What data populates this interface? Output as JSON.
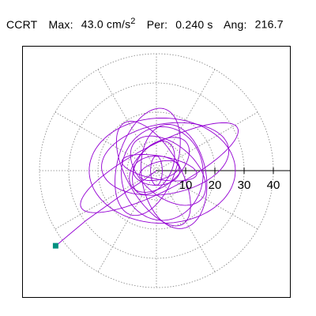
{
  "header": {
    "station": "CCRT",
    "max_label": "Max:",
    "max_value": "43.0",
    "max_unit": "cm/s",
    "max_unit_exp": "2",
    "per_label": "Per:",
    "per_value": "0.240 s",
    "ang_label": "Ang:",
    "ang_value": "216.7"
  },
  "colors": {
    "trace": "#9400d3",
    "marker": "#009080",
    "grid": "#808080",
    "axis": "#000000"
  },
  "chart_data": {
    "type": "polar-particle-motion",
    "title": "",
    "xlabel": "",
    "ylabel": "",
    "radial_ticks": [
      10,
      20,
      30,
      40
    ],
    "radial_tick_labels": [
      "10",
      "20",
      "30",
      "40"
    ],
    "radial_grid": [
      10,
      20,
      30,
      40
    ],
    "angular_grid_step_deg": 30,
    "radial_max": 45,
    "peak": {
      "magnitude": 43.0,
      "angle_deg": 216.7
    },
    "loops": [
      {
        "a": 30,
        "b": 8,
        "rot": 27,
        "cx": 1,
        "cy": 1
      },
      {
        "a": 16,
        "b": 14,
        "rot": 90,
        "cx": 2,
        "cy": -1
      },
      {
        "a": 25,
        "b": 18,
        "rot": 0,
        "cx": 2,
        "cy": 0
      },
      {
        "a": 19,
        "b": 10,
        "rot": 72,
        "cx": -3,
        "cy": 3
      },
      {
        "a": 18,
        "b": 11,
        "rot": 100,
        "cx": 6,
        "cy": -2
      },
      {
        "a": 12,
        "b": 7,
        "rot": 40,
        "cx": 1,
        "cy": 2
      },
      {
        "a": 22,
        "b": 12,
        "rot": 10,
        "cx": 3,
        "cy": 4
      },
      {
        "a": 20,
        "b": 9,
        "rot": 120,
        "cx": -1,
        "cy": -1
      },
      {
        "a": 8,
        "b": 5,
        "rot": 0,
        "cx": 0,
        "cy": 0
      },
      {
        "a": 7,
        "b": 3,
        "rot": 15,
        "cx": 1,
        "cy": 0
      },
      {
        "a": 10,
        "b": 6,
        "rot": 60,
        "cx": -1,
        "cy": 1
      },
      {
        "a": 5,
        "b": 2,
        "rot": 90,
        "cx": 0,
        "cy": 0
      },
      {
        "a": 13,
        "b": 4,
        "rot": 170,
        "cx": 1,
        "cy": 1
      },
      {
        "a": 15,
        "b": 9,
        "rot": 140,
        "cx": 4,
        "cy": 0
      }
    ],
    "tail": [
      [
        -34.5,
        -25.8
      ],
      [
        -30,
        -22
      ],
      [
        -24,
        -17
      ],
      [
        -17,
        -12
      ],
      [
        -10,
        -7
      ],
      [
        -4,
        -3
      ],
      [
        0,
        0
      ]
    ]
  }
}
